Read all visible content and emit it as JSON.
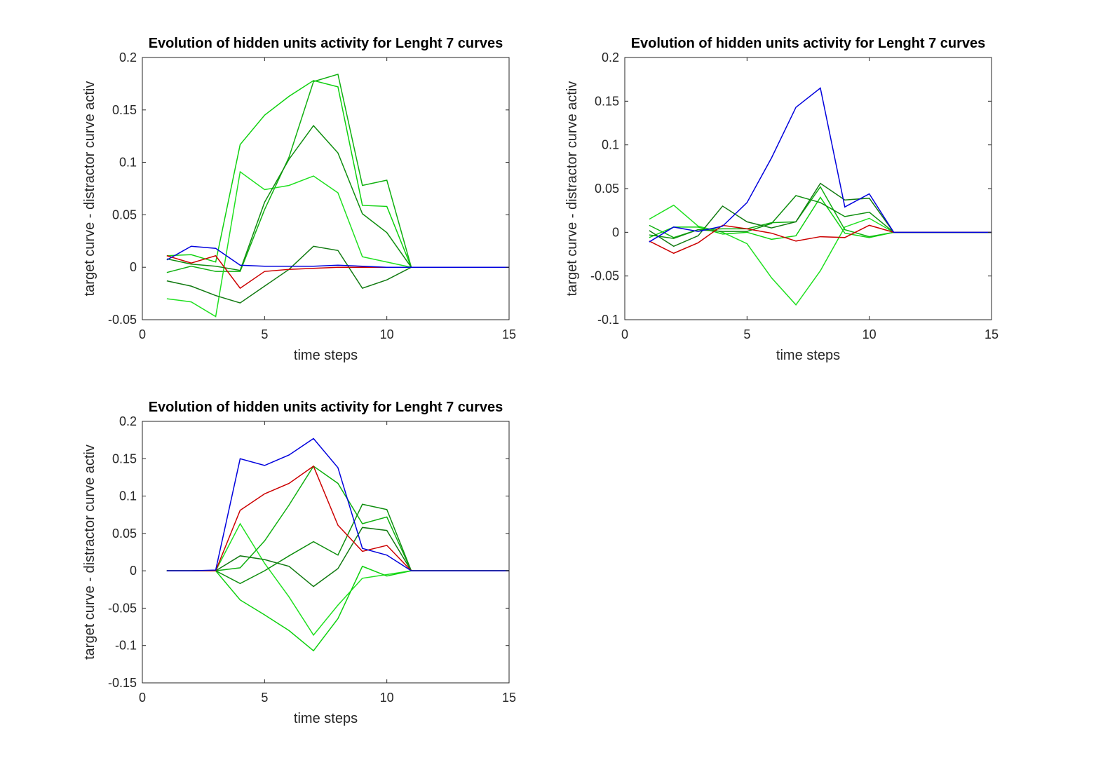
{
  "chart_data": [
    {
      "type": "line",
      "title": "Evolution of hidden units activity for Lenght 7 curves",
      "xlabel": "time steps",
      "ylabel": "target curve - distractor curve activ",
      "xlim": [
        0,
        15
      ],
      "ylim": [
        -0.05,
        0.2
      ],
      "xticks": [
        "0",
        "5",
        "10",
        "15"
      ],
      "yticks": [
        "-0.05",
        "0",
        "0.05",
        "0.1",
        "0.15",
        "0.2"
      ],
      "grid": false,
      "x": [
        1,
        2,
        3,
        4,
        5,
        6,
        7,
        8,
        9,
        10,
        11,
        12,
        13,
        14,
        15
      ],
      "series": [
        {
          "color": "#0ed10e",
          "values": [
            0.011,
            0.012,
            0.005,
            0.117,
            0.145,
            0.163,
            0.178,
            0.172,
            0.059,
            0.058,
            0,
            0,
            0,
            0,
            0
          ]
        },
        {
          "color": "#10b010",
          "values": [
            -0.005,
            0.001,
            -0.004,
            -0.004,
            0.055,
            0.105,
            0.177,
            0.184,
            0.078,
            0.083,
            0,
            0,
            0,
            0,
            0
          ]
        },
        {
          "color": "#1fe01f",
          "values": [
            -0.03,
            -0.033,
            -0.047,
            0.091,
            0.074,
            0.078,
            0.087,
            0.071,
            0.01,
            0.005,
            0,
            0,
            0,
            0,
            0
          ]
        },
        {
          "color": "#0e8e0e",
          "values": [
            0.008,
            0.003,
            0.001,
            -0.003,
            0.062,
            0.103,
            0.135,
            0.109,
            0.051,
            0.033,
            0,
            0,
            0,
            0,
            0
          ]
        },
        {
          "color": "#117a11",
          "values": [
            -0.013,
            -0.018,
            -0.027,
            -0.034,
            -0.018,
            -0.002,
            0.02,
            0.016,
            -0.02,
            -0.012,
            0,
            0,
            0,
            0,
            0
          ]
        },
        {
          "color": "#cc0000",
          "values": [
            0.011,
            0.004,
            0.011,
            -0.02,
            -0.004,
            -0.002,
            -0.001,
            -0.0,
            0.0,
            0.0,
            0,
            0,
            0,
            0,
            0
          ]
        },
        {
          "color": "#0000dd",
          "values": [
            0.007,
            0.02,
            0.018,
            0.002,
            0.001,
            0.001,
            0.001,
            0.002,
            0.001,
            0.0,
            0,
            0,
            0,
            0,
            0
          ]
        }
      ]
    },
    {
      "type": "line",
      "title": "Evolution of hidden units activity for Lenght 7 curves",
      "xlabel": "time steps",
      "ylabel": "target curve - distractor curve activ",
      "xlim": [
        0,
        15
      ],
      "ylim": [
        -0.1,
        0.2
      ],
      "xticks": [
        "0",
        "5",
        "10",
        "15"
      ],
      "yticks": [
        "-0.1",
        "-0.05",
        "0",
        "0.05",
        "0.1",
        "0.15",
        "0.2"
      ],
      "grid": false,
      "x": [
        1,
        2,
        3,
        4,
        5,
        6,
        7,
        8,
        9,
        10,
        11,
        12,
        13,
        14,
        15
      ],
      "series": [
        {
          "color": "#1fe01f",
          "values": [
            0.015,
            0.031,
            0.007,
            -0.0,
            -0.013,
            -0.052,
            -0.083,
            -0.044,
            0.006,
            0.016,
            0,
            0,
            0,
            0,
            0
          ]
        },
        {
          "color": "#10b010",
          "values": [
            0.008,
            -0.006,
            0.003,
            0.004,
            0.004,
            0.011,
            0.012,
            0.052,
            0.003,
            -0.005,
            0,
            0,
            0,
            0,
            0
          ]
        },
        {
          "color": "#0ed10e",
          "values": [
            -0.006,
            0.006,
            0.006,
            -0.002,
            0.0,
            -0.008,
            -0.004,
            0.04,
            -0.001,
            -0.006,
            0,
            0,
            0,
            0,
            0
          ]
        },
        {
          "color": "#117a11",
          "values": [
            0.002,
            -0.016,
            -0.004,
            0.03,
            0.012,
            0.005,
            0.012,
            0.056,
            0.037,
            0.039,
            0,
            0,
            0,
            0,
            0
          ]
        },
        {
          "color": "#0e8e0e",
          "values": [
            -0.003,
            -0.007,
            0.003,
            0.001,
            0.001,
            0.01,
            0.042,
            0.034,
            0.018,
            0.023,
            0,
            0,
            0,
            0,
            0
          ]
        },
        {
          "color": "#cc0000",
          "values": [
            -0.01,
            -0.024,
            -0.012,
            0.008,
            0.004,
            -0.001,
            -0.01,
            -0.005,
            -0.006,
            0.008,
            0,
            0,
            0,
            0,
            0
          ]
        },
        {
          "color": "#0000dd",
          "values": [
            -0.011,
            0.006,
            0.001,
            0.007,
            0.034,
            0.085,
            0.143,
            0.165,
            0.029,
            0.044,
            0,
            0,
            0,
            0,
            0
          ]
        }
      ]
    },
    {
      "type": "line",
      "title": "Evolution of hidden units activity for Lenght 7 curves",
      "xlabel": "time steps",
      "ylabel": "target curve - distractor curve activ",
      "xlim": [
        0,
        15
      ],
      "ylim": [
        -0.15,
        0.2
      ],
      "xticks": [
        "0",
        "5",
        "10",
        "15"
      ],
      "yticks": [
        "-0.15",
        "-0.1",
        "-0.05",
        "0",
        "0.05",
        "0.1",
        "0.15",
        "0.2"
      ],
      "grid": false,
      "x": [
        1,
        2,
        3,
        4,
        5,
        6,
        7,
        8,
        9,
        10,
        11,
        12,
        13,
        14,
        15
      ],
      "series": [
        {
          "color": "#10b010",
          "values": [
            0,
            0,
            0,
            0.004,
            0.04,
            0.088,
            0.14,
            0.117,
            0.063,
            0.072,
            0,
            0,
            0,
            0,
            0
          ]
        },
        {
          "color": "#1fe01f",
          "values": [
            0,
            0,
            0,
            0.063,
            0.01,
            -0.035,
            -0.086,
            -0.046,
            -0.01,
            -0.005,
            0,
            0,
            0,
            0,
            0
          ]
        },
        {
          "color": "#0ed10e",
          "values": [
            0,
            0,
            0,
            -0.039,
            -0.059,
            -0.08,
            -0.107,
            -0.064,
            0.006,
            -0.007,
            0,
            0,
            0,
            0,
            0
          ]
        },
        {
          "color": "#117a11",
          "values": [
            0,
            0,
            0,
            0.02,
            0.015,
            0.006,
            -0.021,
            0.003,
            0.058,
            0.054,
            0,
            0,
            0,
            0,
            0
          ]
        },
        {
          "color": "#0e8e0e",
          "values": [
            0,
            0,
            0,
            -0.017,
            0.0,
            0.02,
            0.039,
            0.021,
            0.089,
            0.082,
            0,
            0,
            0,
            0,
            0
          ]
        },
        {
          "color": "#cc0000",
          "values": [
            0,
            0,
            0,
            0.081,
            0.103,
            0.117,
            0.14,
            0.061,
            0.026,
            0.034,
            0,
            0,
            0,
            0,
            0
          ]
        },
        {
          "color": "#0000dd",
          "values": [
            0,
            0,
            0.001,
            0.15,
            0.141,
            0.155,
            0.177,
            0.138,
            0.03,
            0.021,
            0,
            0,
            0,
            0,
            0
          ]
        }
      ]
    }
  ]
}
